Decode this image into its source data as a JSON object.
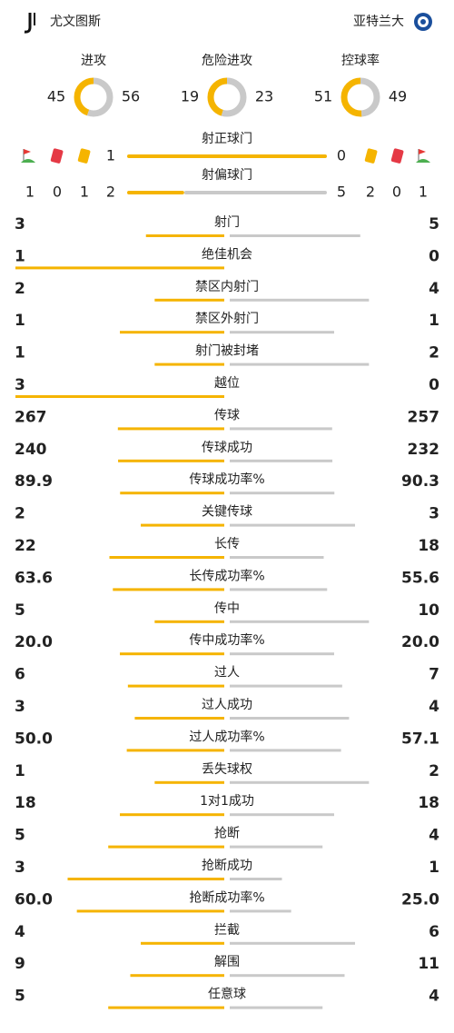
{
  "header": {
    "home_team": "尤文图斯",
    "away_team": "亚特兰大"
  },
  "rings": [
    {
      "label": "进攻",
      "home": 45,
      "away": 56
    },
    {
      "label": "危险进攻",
      "home": 19,
      "away": 23
    },
    {
      "label": "控球率",
      "home": 51,
      "away": 49
    }
  ],
  "shots": [
    {
      "label": "射正球门",
      "home": 1,
      "away": 0
    },
    {
      "label": "射偏球门",
      "home": 2,
      "away": 5
    }
  ],
  "cards": {
    "home": {
      "corners": 1,
      "red": 0,
      "yellow": 1
    },
    "away": {
      "yellow": 2,
      "red": 0,
      "corners": 1
    }
  },
  "stats": [
    {
      "label": "射门",
      "home": "3",
      "away": "5"
    },
    {
      "label": "绝佳机会",
      "home": "1",
      "away": "0"
    },
    {
      "label": "禁区内射门",
      "home": "2",
      "away": "4"
    },
    {
      "label": "禁区外射门",
      "home": "1",
      "away": "1"
    },
    {
      "label": "射门被封堵",
      "home": "1",
      "away": "2"
    },
    {
      "label": "越位",
      "home": "3",
      "away": "0"
    },
    {
      "label": "传球",
      "home": "267",
      "away": "257"
    },
    {
      "label": "传球成功",
      "home": "240",
      "away": "232"
    },
    {
      "label": "传球成功率%",
      "home": "89.9",
      "away": "90.3"
    },
    {
      "label": "关键传球",
      "home": "2",
      "away": "3"
    },
    {
      "label": "长传",
      "home": "22",
      "away": "18"
    },
    {
      "label": "长传成功率%",
      "home": "63.6",
      "away": "55.6"
    },
    {
      "label": "传中",
      "home": "5",
      "away": "10"
    },
    {
      "label": "传中成功率%",
      "home": "20.0",
      "away": "20.0"
    },
    {
      "label": "过人",
      "home": "6",
      "away": "7"
    },
    {
      "label": "过人成功",
      "home": "3",
      "away": "4"
    },
    {
      "label": "过人成功率%",
      "home": "50.0",
      "away": "57.1"
    },
    {
      "label": "丢失球权",
      "home": "1",
      "away": "2"
    },
    {
      "label": "1对1成功",
      "home": "18",
      "away": "18"
    },
    {
      "label": "抢断",
      "home": "5",
      "away": "4"
    },
    {
      "label": "抢断成功",
      "home": "3",
      "away": "1"
    },
    {
      "label": "抢断成功率%",
      "home": "60.0",
      "away": "25.0"
    },
    {
      "label": "拦截",
      "home": "4",
      "away": "6"
    },
    {
      "label": "解围",
      "home": "9",
      "away": "11"
    },
    {
      "label": "任意球",
      "home": "5",
      "away": "4"
    }
  ]
}
